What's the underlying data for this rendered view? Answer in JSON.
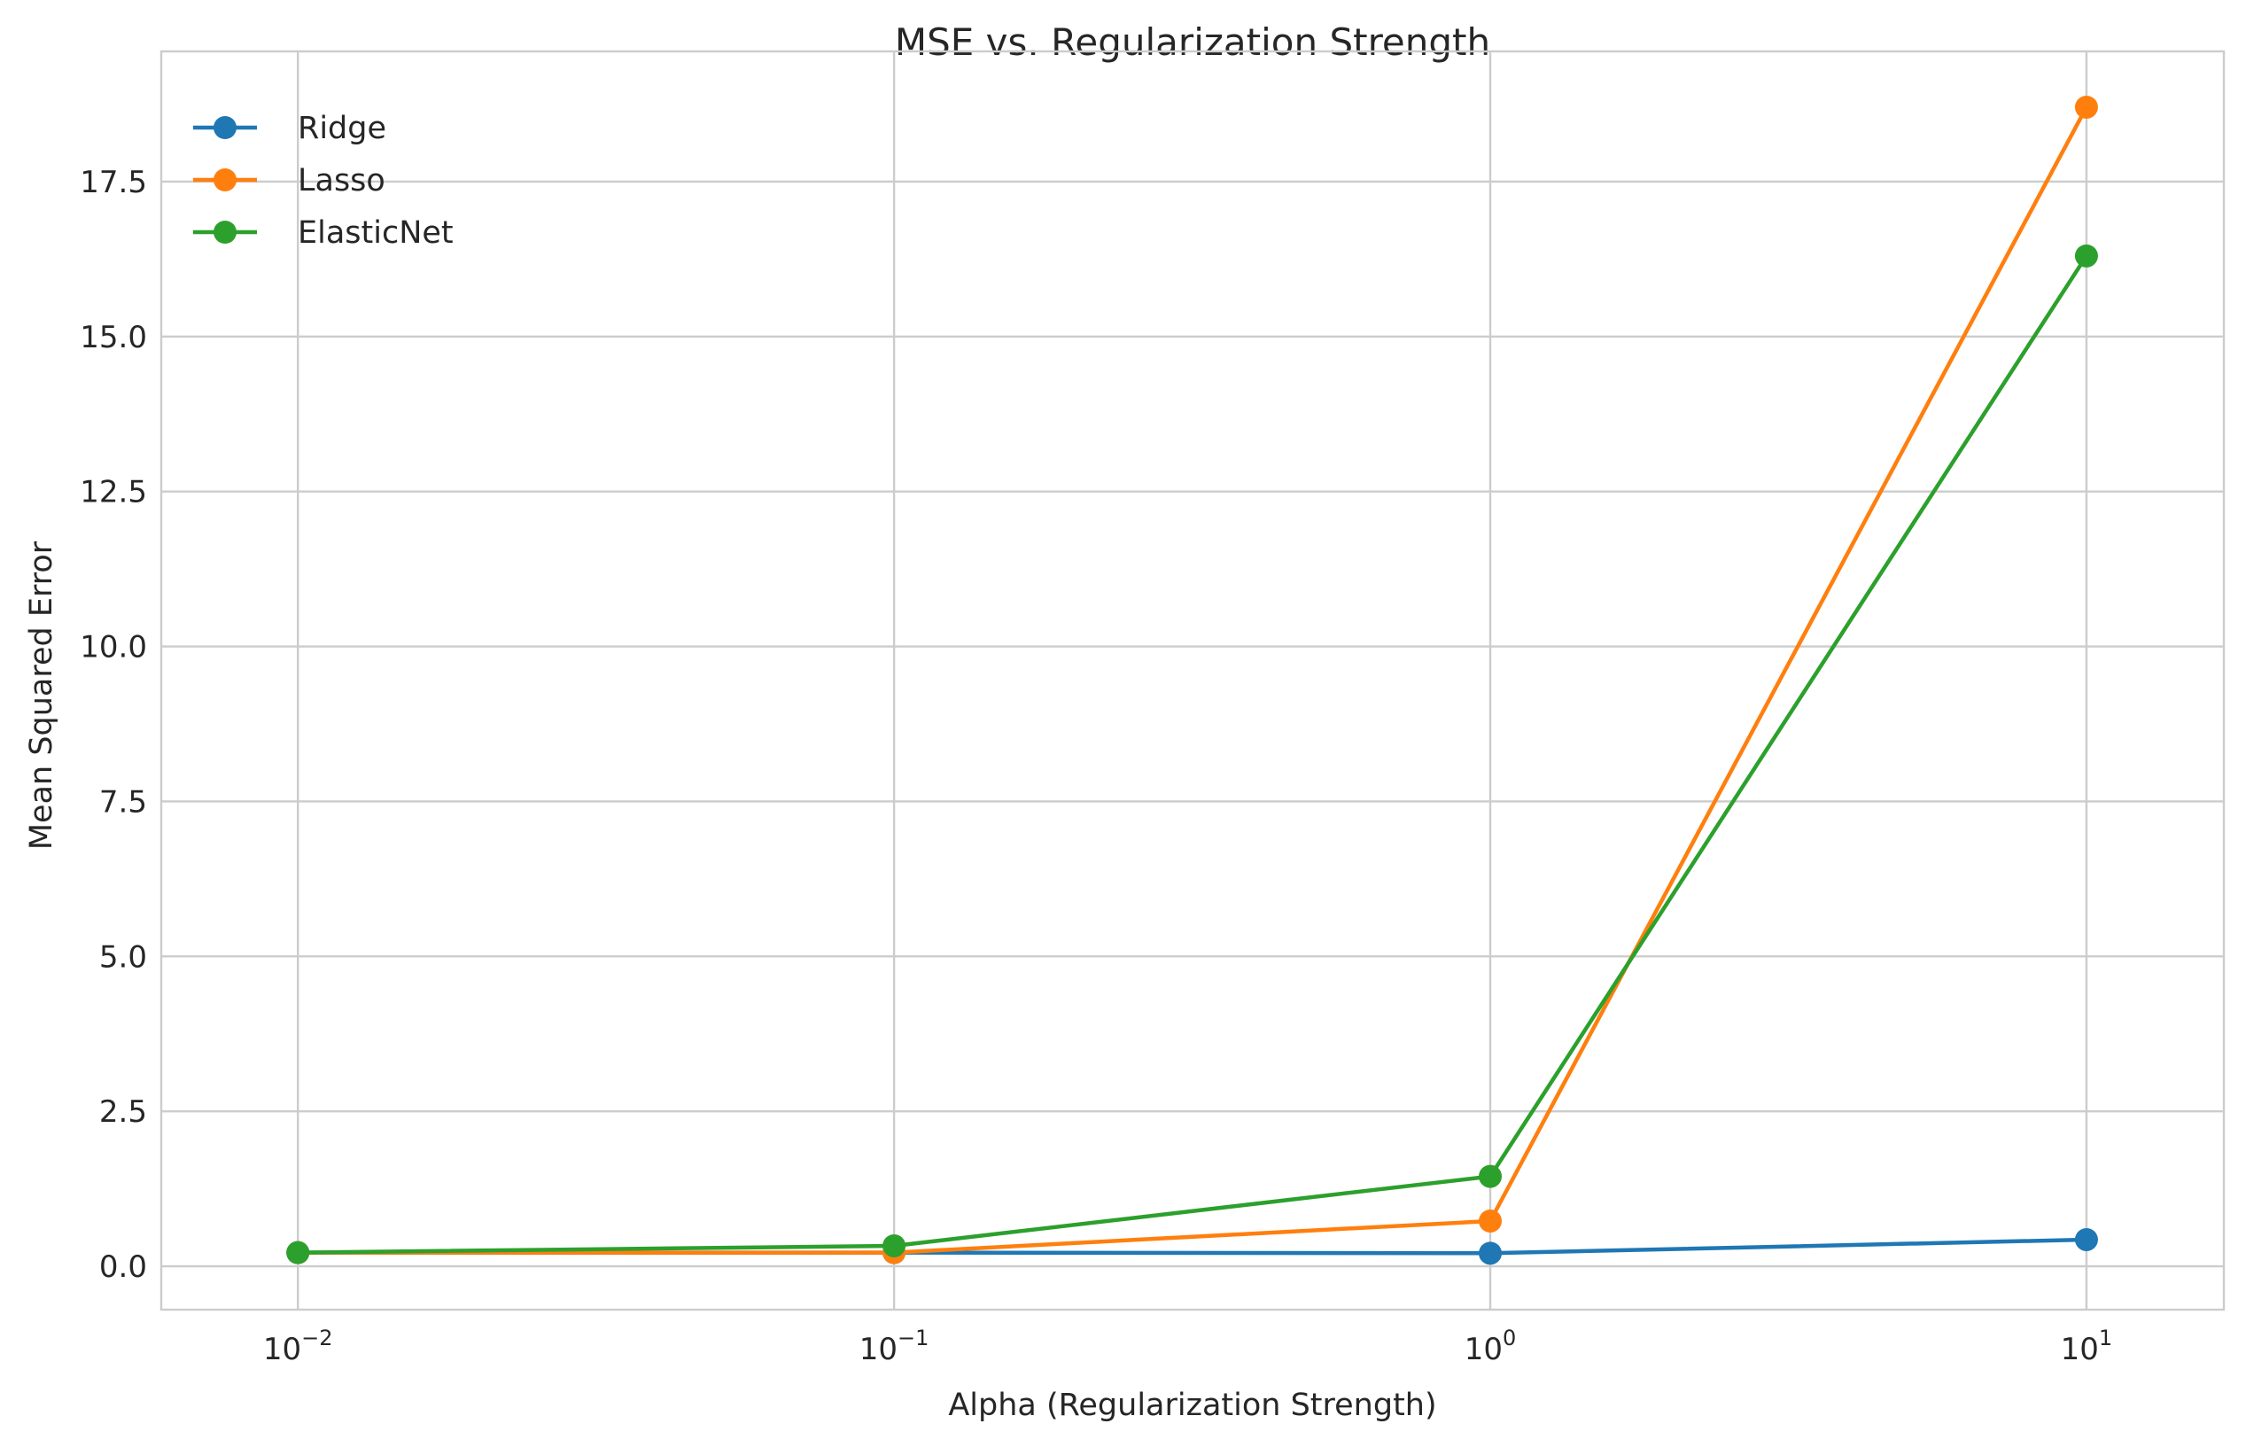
{
  "chart_data": {
    "type": "line",
    "title": "MSE vs. Regularization Strength",
    "xlabel": "Alpha (Regularization Strength)",
    "ylabel": "Mean Squared Error",
    "x_scale": "log",
    "x": [
      0.01,
      0.1,
      1,
      10
    ],
    "xlim": [
      0.0059,
      17
    ],
    "ylim": [
      -0.7,
      19.6
    ],
    "x_ticks": [
      {
        "value": 0.01,
        "base": "10",
        "exp": "−2"
      },
      {
        "value": 0.1,
        "base": "10",
        "exp": "−1"
      },
      {
        "value": 1,
        "base": "10",
        "exp": "0"
      },
      {
        "value": 10,
        "base": "10",
        "exp": "1"
      }
    ],
    "y_ticks": [
      {
        "value": 0.0,
        "label": "0.0"
      },
      {
        "value": 2.5,
        "label": "2.5"
      },
      {
        "value": 5.0,
        "label": "5.0"
      },
      {
        "value": 7.5,
        "label": "7.5"
      },
      {
        "value": 10.0,
        "label": "10.0"
      },
      {
        "value": 12.5,
        "label": "12.5"
      },
      {
        "value": 15.0,
        "label": "15.0"
      },
      {
        "value": 17.5,
        "label": "17.5"
      }
    ],
    "grid": true,
    "legend_position": "top-left",
    "series": [
      {
        "name": "Ridge",
        "color": "#1f77b4",
        "values": [
          0.22,
          0.22,
          0.21,
          0.43
        ]
      },
      {
        "name": "Lasso",
        "color": "#ff7f0e",
        "values": [
          0.22,
          0.22,
          0.73,
          18.7
        ]
      },
      {
        "name": "ElasticNet",
        "color": "#2ca02c",
        "values": [
          0.22,
          0.33,
          1.45,
          16.3
        ]
      }
    ]
  }
}
